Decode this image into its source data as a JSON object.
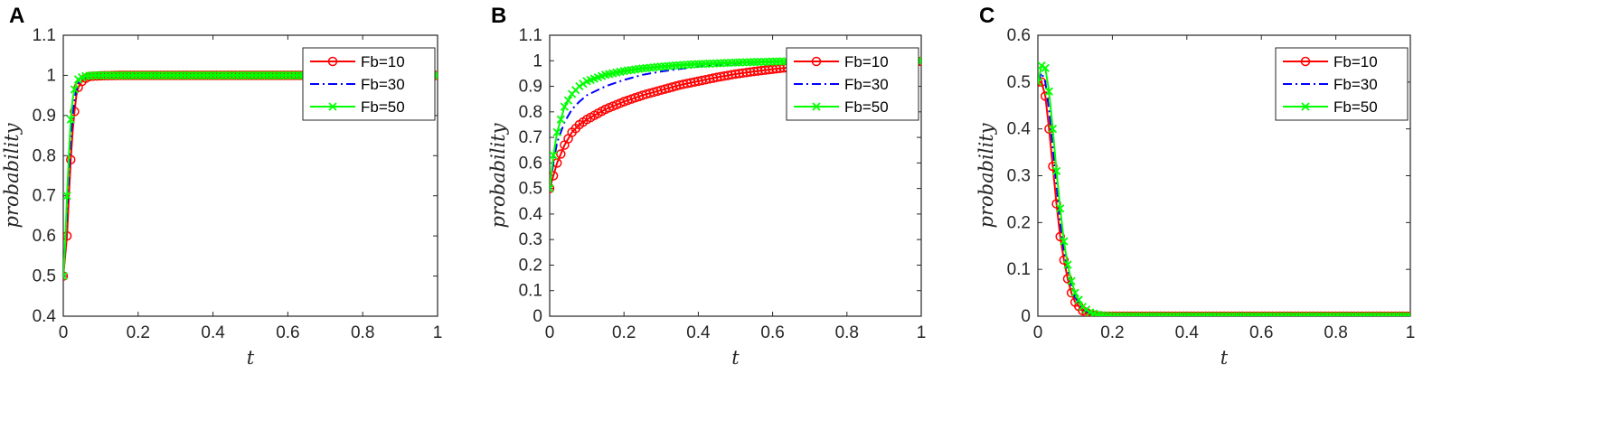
{
  "chart_data": [
    {
      "panel_label": "A",
      "type": "line",
      "xlabel": "t",
      "ylabel": "probability",
      "xlim": [
        0,
        1
      ],
      "ylim": [
        0.4,
        1.1
      ],
      "xticks": [
        "0",
        "0.2",
        "0.4",
        "0.6",
        "0.8",
        "1"
      ],
      "yticks": [
        "0.4",
        "0.5",
        "0.6",
        "0.7",
        "0.8",
        "0.9",
        "1",
        "1.1"
      ],
      "legend_position": "top-right",
      "series": [
        {
          "name": "Fb=10",
          "color": "#ff0000",
          "style": "solid",
          "marker": "circle",
          "x": [
            0,
            0.005,
            0.01,
            0.015,
            0.02,
            0.025,
            0.03,
            0.035,
            0.04,
            0.05,
            0.06,
            0.07,
            0.08,
            0.1,
            0.15,
            0.2,
            0.3,
            0.4,
            0.5,
            0.6,
            0.7,
            0.8,
            0.9,
            1.0
          ],
          "y": [
            0.5,
            0.55,
            0.6,
            0.7,
            0.79,
            0.86,
            0.91,
            0.95,
            0.97,
            0.985,
            0.993,
            0.997,
            0.998,
            0.999,
            1.0,
            1.0,
            1.0,
            1.0,
            1.0,
            1.0,
            1.0,
            1.0,
            1.0,
            1.0
          ]
        },
        {
          "name": "Fb=30",
          "color": "#0000ff",
          "style": "dashdot",
          "marker": "none",
          "x": [
            0,
            0.005,
            0.01,
            0.015,
            0.02,
            0.025,
            0.03,
            0.035,
            0.04,
            0.05,
            0.06,
            0.07,
            0.08,
            0.1,
            0.15,
            0.2,
            0.3,
            0.4,
            0.5,
            0.6,
            0.7,
            0.8,
            0.9,
            1.0
          ],
          "y": [
            0.5,
            0.57,
            0.66,
            0.76,
            0.84,
            0.9,
            0.94,
            0.965,
            0.98,
            0.99,
            0.996,
            0.998,
            0.999,
            1.0,
            1.0,
            1.0,
            1.0,
            1.0,
            1.0,
            1.0,
            1.0,
            1.0,
            1.0,
            1.0
          ]
        },
        {
          "name": "Fb=50",
          "color": "#00ff00",
          "style": "solid",
          "marker": "x",
          "x": [
            0,
            0.005,
            0.01,
            0.015,
            0.02,
            0.025,
            0.03,
            0.035,
            0.04,
            0.05,
            0.06,
            0.07,
            0.08,
            0.1,
            0.15,
            0.2,
            0.3,
            0.4,
            0.5,
            0.6,
            0.7,
            0.8,
            0.9,
            1.0
          ],
          "y": [
            0.5,
            0.58,
            0.7,
            0.8,
            0.89,
            0.94,
            0.965,
            0.98,
            0.99,
            0.995,
            0.998,
            0.999,
            1.0,
            1.0,
            1.0,
            1.0,
            1.0,
            1.0,
            1.0,
            1.0,
            1.0,
            1.0,
            1.0,
            1.0
          ]
        }
      ]
    },
    {
      "panel_label": "B",
      "type": "line",
      "xlabel": "t",
      "ylabel": "probability",
      "xlim": [
        0,
        1
      ],
      "ylim": [
        0,
        1.1
      ],
      "xticks": [
        "0",
        "0.2",
        "0.4",
        "0.6",
        "0.8",
        "1"
      ],
      "yticks": [
        "0",
        "0.1",
        "0.2",
        "0.3",
        "0.4",
        "0.5",
        "0.6",
        "0.7",
        "0.8",
        "0.9",
        "1",
        "1.1"
      ],
      "legend_position": "top-right",
      "series": [
        {
          "name": "Fb=10",
          "color": "#ff0000",
          "style": "solid",
          "marker": "circle",
          "x": [
            0,
            0.01,
            0.02,
            0.04,
            0.06,
            0.08,
            0.1,
            0.15,
            0.2,
            0.25,
            0.3,
            0.35,
            0.4,
            0.45,
            0.5,
            0.55,
            0.6,
            0.65,
            0.7,
            0.8,
            0.9,
            1.0
          ],
          "y": [
            0.5,
            0.55,
            0.6,
            0.67,
            0.72,
            0.75,
            0.77,
            0.81,
            0.84,
            0.865,
            0.885,
            0.905,
            0.92,
            0.935,
            0.948,
            0.958,
            0.967,
            0.975,
            0.982,
            0.99,
            0.995,
            0.998
          ]
        },
        {
          "name": "Fb=30",
          "color": "#0000ff",
          "style": "dashdot",
          "marker": "none",
          "x": [
            0,
            0.01,
            0.02,
            0.04,
            0.06,
            0.08,
            0.1,
            0.15,
            0.2,
            0.25,
            0.3,
            0.35,
            0.4,
            0.45,
            0.5,
            0.6,
            0.7,
            0.8,
            0.9,
            1.0
          ],
          "y": [
            0.5,
            0.6,
            0.68,
            0.76,
            0.81,
            0.84,
            0.865,
            0.9,
            0.925,
            0.945,
            0.958,
            0.968,
            0.977,
            0.984,
            0.989,
            0.995,
            0.998,
            0.999,
            1.0,
            1.0
          ]
        },
        {
          "name": "Fb=50",
          "color": "#00ff00",
          "style": "solid",
          "marker": "x",
          "x": [
            0,
            0.01,
            0.02,
            0.04,
            0.06,
            0.08,
            0.1,
            0.15,
            0.2,
            0.25,
            0.3,
            0.35,
            0.4,
            0.45,
            0.5,
            0.6,
            0.7,
            0.8,
            0.9,
            1.0
          ],
          "y": [
            0.5,
            0.63,
            0.72,
            0.82,
            0.87,
            0.9,
            0.92,
            0.945,
            0.96,
            0.97,
            0.977,
            0.983,
            0.987,
            0.99,
            0.993,
            0.997,
            0.999,
            1.0,
            1.0,
            1.0
          ]
        }
      ]
    },
    {
      "panel_label": "C",
      "type": "line",
      "xlabel": "t",
      "ylabel": "probability",
      "xlim": [
        0,
        1
      ],
      "ylim": [
        0,
        0.6
      ],
      "xticks": [
        "0",
        "0.2",
        "0.4",
        "0.6",
        "0.8",
        "1"
      ],
      "yticks": [
        "0",
        "0.1",
        "0.2",
        "0.3",
        "0.4",
        "0.5",
        "0.6"
      ],
      "legend_position": "top-right",
      "series": [
        {
          "name": "Fb=10",
          "color": "#ff0000",
          "style": "solid",
          "marker": "circle",
          "x": [
            0,
            0.01,
            0.02,
            0.03,
            0.04,
            0.05,
            0.06,
            0.07,
            0.08,
            0.09,
            0.1,
            0.12,
            0.14,
            0.16,
            0.18,
            0.2,
            0.3,
            0.4,
            0.5,
            0.6,
            0.7,
            0.8,
            0.9,
            1.0
          ],
          "y": [
            0.5,
            0.5,
            0.47,
            0.4,
            0.32,
            0.24,
            0.17,
            0.12,
            0.08,
            0.05,
            0.03,
            0.012,
            0.004,
            0.001,
            0,
            0,
            0,
            0,
            0,
            0,
            0,
            0,
            0,
            0
          ]
        },
        {
          "name": "Fb=30",
          "color": "#0000ff",
          "style": "dashdot",
          "marker": "none",
          "x": [
            0,
            0.01,
            0.02,
            0.03,
            0.04,
            0.05,
            0.06,
            0.07,
            0.08,
            0.09,
            0.1,
            0.12,
            0.14,
            0.16,
            0.18,
            0.2,
            0.3,
            0.4,
            0.5,
            0.6,
            0.7,
            0.8,
            0.9,
            1.0
          ],
          "y": [
            0.5,
            0.52,
            0.5,
            0.44,
            0.36,
            0.28,
            0.2,
            0.14,
            0.1,
            0.065,
            0.04,
            0.016,
            0.006,
            0.002,
            0.001,
            0,
            0,
            0,
            0,
            0,
            0,
            0,
            0,
            0
          ]
        },
        {
          "name": "Fb=50",
          "color": "#00ff00",
          "style": "solid",
          "marker": "x",
          "x": [
            0,
            0.01,
            0.02,
            0.03,
            0.04,
            0.05,
            0.06,
            0.07,
            0.08,
            0.09,
            0.1,
            0.12,
            0.14,
            0.16,
            0.18,
            0.2,
            0.3,
            0.4,
            0.5,
            0.6,
            0.7,
            0.8,
            0.9,
            1.0
          ],
          "y": [
            0.5,
            0.535,
            0.53,
            0.48,
            0.4,
            0.31,
            0.23,
            0.16,
            0.11,
            0.075,
            0.05,
            0.02,
            0.008,
            0.003,
            0.001,
            0,
            0,
            0,
            0,
            0,
            0,
            0,
            0,
            0
          ]
        }
      ]
    }
  ]
}
